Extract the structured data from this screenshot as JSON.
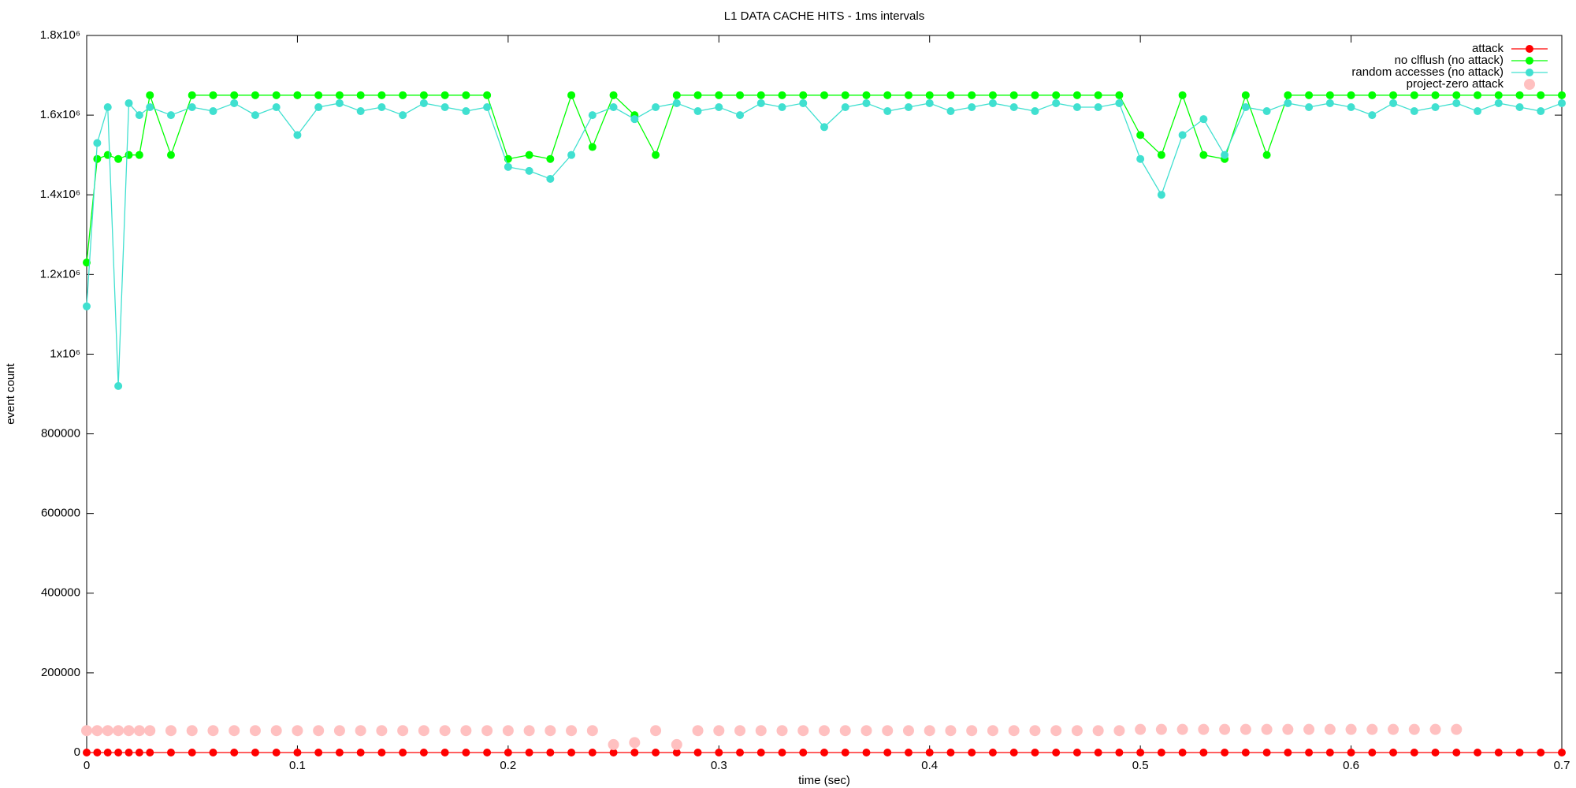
{
  "chart_data": {
    "type": "line",
    "title": "L1 DATA CACHE HITS - 1ms intervals",
    "x_label": "time (sec)",
    "y_label": "event count",
    "x": [
      0,
      0.005,
      0.01,
      0.015,
      0.02,
      0.025,
      0.03,
      0.04,
      0.05,
      0.06,
      0.07,
      0.08,
      0.09,
      0.1,
      0.11,
      0.12,
      0.13,
      0.14,
      0.15,
      0.16,
      0.17,
      0.18,
      0.19,
      0.2,
      0.21,
      0.22,
      0.23,
      0.24,
      0.25,
      0.26,
      0.27,
      0.28,
      0.29,
      0.3,
      0.31,
      0.32,
      0.33,
      0.34,
      0.35,
      0.36,
      0.37,
      0.38,
      0.39,
      0.4,
      0.41,
      0.42,
      0.43,
      0.44,
      0.45,
      0.46,
      0.47,
      0.48,
      0.49,
      0.5,
      0.51,
      0.52,
      0.53,
      0.54,
      0.55,
      0.56,
      0.57,
      0.58,
      0.59,
      0.6,
      0.61,
      0.62,
      0.63,
      0.64,
      0.65,
      0.66,
      0.67,
      0.68,
      0.69,
      0.7
    ],
    "series": [
      {
        "name": "attack",
        "color": "#ff0000",
        "style": "linespoints",
        "values": [
          0,
          0,
          0,
          0,
          0,
          0,
          0,
          0,
          0,
          0,
          0,
          0,
          0,
          0,
          0,
          0,
          0,
          0,
          0,
          0,
          0,
          0,
          0,
          0,
          0,
          0,
          0,
          0,
          0,
          0,
          0,
          0,
          0,
          0,
          0,
          0,
          0,
          0,
          0,
          0,
          0,
          0,
          0,
          0,
          0,
          0,
          0,
          0,
          0,
          0,
          0,
          0,
          0,
          0,
          0,
          0,
          0,
          0,
          0,
          0,
          0,
          0,
          0,
          0,
          0,
          0,
          0,
          0,
          0,
          0,
          0,
          0,
          0,
          0
        ]
      },
      {
        "name": "no clflush (no attack)",
        "color": "#00ff00",
        "style": "linespoints",
        "values": [
          1230000,
          1490000,
          1500000,
          1490000,
          1500000,
          1500000,
          1650000,
          1500000,
          1650000,
          1650000,
          1650000,
          1650000,
          1650000,
          1650000,
          1650000,
          1650000,
          1650000,
          1650000,
          1650000,
          1650000,
          1650000,
          1650000,
          1650000,
          1490000,
          1500000,
          1490000,
          1650000,
          1520000,
          1650000,
          1600000,
          1500000,
          1650000,
          1650000,
          1650000,
          1650000,
          1650000,
          1650000,
          1650000,
          1650000,
          1650000,
          1650000,
          1650000,
          1650000,
          1650000,
          1650000,
          1650000,
          1650000,
          1650000,
          1650000,
          1650000,
          1650000,
          1650000,
          1650000,
          1550000,
          1500000,
          1650000,
          1500000,
          1490000,
          1650000,
          1500000,
          1650000,
          1650000,
          1650000,
          1650000,
          1650000,
          1650000,
          1650000,
          1650000,
          1650000,
          1650000,
          1650000,
          1650000,
          1650000,
          1650000
        ]
      },
      {
        "name": "random accesses (no attack)",
        "color": "#40e0d0",
        "style": "linespoints",
        "values": [
          1120000,
          1530000,
          1620000,
          920000,
          1630000,
          1600000,
          1620000,
          1600000,
          1620000,
          1610000,
          1630000,
          1600000,
          1620000,
          1550000,
          1620000,
          1630000,
          1610000,
          1620000,
          1600000,
          1630000,
          1620000,
          1610000,
          1620000,
          1470000,
          1460000,
          1440000,
          1500000,
          1600000,
          1620000,
          1590000,
          1620000,
          1630000,
          1610000,
          1620000,
          1600000,
          1630000,
          1620000,
          1630000,
          1570000,
          1620000,
          1630000,
          1610000,
          1620000,
          1630000,
          1610000,
          1620000,
          1630000,
          1620000,
          1610000,
          1630000,
          1620000,
          1620000,
          1630000,
          1490000,
          1400000,
          1550000,
          1590000,
          1500000,
          1620000,
          1610000,
          1630000,
          1620000,
          1630000,
          1620000,
          1600000,
          1630000,
          1610000,
          1620000,
          1630000,
          1610000,
          1630000,
          1620000,
          1610000,
          1630000
        ]
      },
      {
        "name": "project-zero attack",
        "color": "#ffc0c0",
        "style": "points",
        "values": [
          55000,
          55000,
          55000,
          55000,
          55000,
          55000,
          55000,
          55000,
          55000,
          55000,
          55000,
          55000,
          55000,
          55000,
          55000,
          55000,
          55000,
          55000,
          55000,
          55000,
          55000,
          55000,
          55000,
          55000,
          55000,
          55000,
          55000,
          55000,
          20000,
          25000,
          55000,
          20000,
          55000,
          55000,
          55000,
          55000,
          55000,
          55000,
          55000,
          55000,
          55000,
          55000,
          55000,
          55000,
          55000,
          55000,
          55000,
          55000,
          55000,
          55000,
          55000,
          55000,
          55000,
          58000,
          58000,
          58000,
          58000,
          58000,
          58000,
          58000,
          58000,
          58000,
          58000,
          58000,
          58000,
          58000,
          58000,
          58000,
          58000,
          null,
          null,
          null,
          null,
          null
        ]
      }
    ],
    "xlim": [
      0,
      0.7
    ],
    "xticks": [
      0,
      0.1,
      0.2,
      0.3,
      0.4,
      0.5,
      0.6,
      0.7
    ],
    "ylim": [
      0,
      1800000
    ],
    "yticks": [
      0,
      200000,
      400000,
      600000,
      800000,
      {
        "value": 1000000,
        "label": "1x10⁶"
      },
      {
        "value": 1200000,
        "label": "1.2x10⁶"
      },
      {
        "value": 1400000,
        "label": "1.4x10⁶"
      },
      {
        "value": 1600000,
        "label": "1.6x10⁶"
      },
      {
        "value": 1800000,
        "label": "1.8x10⁶"
      }
    ],
    "grid": false,
    "legend": "top right"
  }
}
